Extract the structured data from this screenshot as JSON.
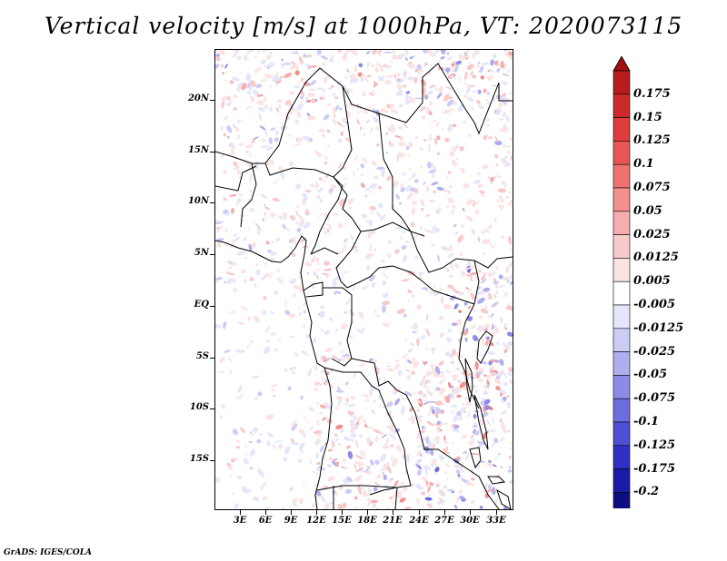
{
  "title": "Vertical velocity [m/s] at 1000hPa, VT: 2020073115",
  "credit": "GrADS: IGES/COLA",
  "lat_labels": [
    "20N",
    "15N",
    "10N",
    "5N",
    "EQ",
    "5S",
    "10S",
    "15S"
  ],
  "lon_labels": [
    "3E",
    "6E",
    "9E",
    "12E",
    "15E",
    "18E",
    "21E",
    "24E",
    "27E",
    "30E",
    "33E"
  ],
  "colorbar": {
    "labels": [
      "0.175",
      "0.15",
      "0.125",
      "0.1",
      "0.075",
      "0.05",
      "0.025",
      "0.0125",
      "0.005",
      "-0.005",
      "-0.0125",
      "-0.025",
      "-0.05",
      "-0.075",
      "-0.1",
      "-0.125",
      "-0.175",
      "-0.2"
    ],
    "colors": [
      "#b71c1c",
      "#cc2a2a",
      "#dd3d3d",
      "#e85656",
      "#ef7272",
      "#f28f8f",
      "#f6adad",
      "#f9caca",
      "#fce3e3",
      "#ffffff",
      "#e6e6fb",
      "#ccccf6",
      "#aeaeef",
      "#8c8ce8",
      "#6d6de0",
      "#4f4fd5",
      "#3030c5",
      "#1a1aa8",
      "#0e0e80"
    ],
    "top_color": "#a01010",
    "bottom_color": "#0a0a78"
  }
}
